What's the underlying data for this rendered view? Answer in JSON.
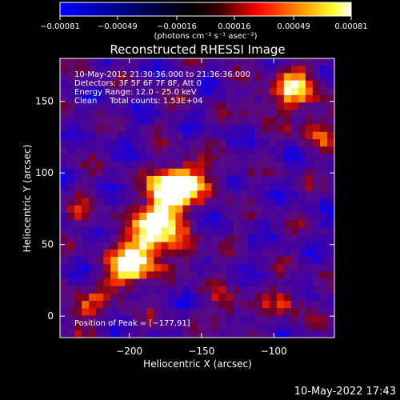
{
  "chart_data": {
    "type": "heatmap",
    "title": "Reconstructed RHESSI Image",
    "xlabel": "Heliocentric X (arcsec)",
    "ylabel": "Heliocentric Y (arcsec)",
    "xlim": [
      -248,
      -58
    ],
    "ylim": [
      -15,
      180
    ],
    "x_ticks": [
      -200,
      -150,
      -100
    ],
    "x_tick_labels": [
      "−200",
      "−150",
      "−100"
    ],
    "y_ticks": [
      0,
      50,
      100,
      150
    ],
    "y_tick_labels": [
      "0",
      "50",
      "100",
      "150"
    ],
    "colorbar": {
      "range": [
        -0.00081,
        0.00081
      ],
      "ticks": [
        -0.00081,
        -0.00049,
        -0.00016,
        0.00016,
        0.00049,
        0.00081
      ],
      "tick_labels": [
        "−0.00081",
        "−0.00049",
        "−0.00016",
        "0.00016",
        "0.00049",
        "0.00081"
      ],
      "unit": "(photons cm⁻² s⁻¹ asec⁻²)",
      "colors": [
        "#0000ff",
        "#000000",
        "#ff0000",
        "#ffff00",
        "#ffffff"
      ]
    },
    "annotations": [
      "10-May-2012 21:30:36.000 to 21:36:36.000",
      "Detectors: 3F 5F 6F 7F 8F, Att 0",
      "Energy Range: 12.0 - 25.0 keV",
      "Clean     Total counts: 1.53E+04"
    ],
    "peak": {
      "label": "Position of Peak = [−177,91]",
      "x": -177,
      "y": 91
    },
    "grid": false,
    "colormap_description": "blue-purple background with red/orange/yellow emission, brightest along a diagonal ridge from about (-200,30) to (-165,100) and along the right edge near (-80,150)"
  },
  "footer": {
    "timestamp": "10-May-2022 17:43"
  }
}
